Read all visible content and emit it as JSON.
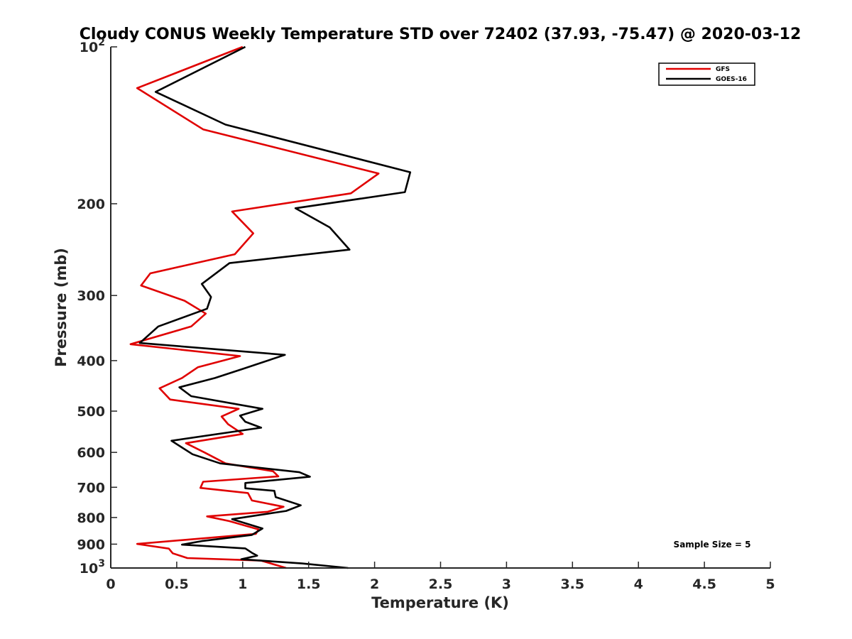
{
  "chart_data": {
    "type": "line",
    "title": "Cloudy CONUS Weekly Temperature STD over 72402 (37.93, -75.47) @ 2020-03-12",
    "xlabel": "Temperature (K)",
    "ylabel": "Pressure (mb)",
    "xlim": [
      0,
      5
    ],
    "ylim": [
      100,
      1000
    ],
    "y_scale": "log",
    "y_reversed": true,
    "x_ticks": [
      0,
      0.5,
      1,
      1.5,
      2,
      2.5,
      3,
      3.5,
      4,
      4.5,
      5
    ],
    "x_tick_labels": [
      "0",
      "0.5",
      "1",
      "1.5",
      "2",
      "2.5",
      "3",
      "3.5",
      "4",
      "4.5",
      "5"
    ],
    "y_ticks": [
      {
        "value": 100,
        "base": "10",
        "exp": "2",
        "label": ""
      },
      {
        "value": 200,
        "base": "",
        "exp": "",
        "label": "200"
      },
      {
        "value": 300,
        "base": "",
        "exp": "",
        "label": "300"
      },
      {
        "value": 400,
        "base": "",
        "exp": "",
        "label": "400"
      },
      {
        "value": 500,
        "base": "",
        "exp": "",
        "label": "500"
      },
      {
        "value": 600,
        "base": "",
        "exp": "",
        "label": "600"
      },
      {
        "value": 700,
        "base": "",
        "exp": "",
        "label": "700"
      },
      {
        "value": 800,
        "base": "",
        "exp": "",
        "label": "800"
      },
      {
        "value": 900,
        "base": "",
        "exp": "",
        "label": "900"
      },
      {
        "value": 1000,
        "base": "10",
        "exp": "3",
        "label": ""
      }
    ],
    "grid": false,
    "legend_position": "top-right",
    "annotation": "Sample Size = 5",
    "series": [
      {
        "name": "GFS",
        "color": "#e00000",
        "points": [
          [
            1.0,
            100
          ],
          [
            0.2,
            120
          ],
          [
            0.7,
            144
          ],
          [
            2.03,
            175
          ],
          [
            1.82,
            191
          ],
          [
            0.92,
            207
          ],
          [
            1.08,
            228
          ],
          [
            0.94,
            250
          ],
          [
            0.3,
            272
          ],
          [
            0.23,
            287
          ],
          [
            0.56,
            307
          ],
          [
            0.72,
            325
          ],
          [
            0.61,
            344
          ],
          [
            0.15,
            372
          ],
          [
            0.98,
            392
          ],
          [
            0.66,
            412
          ],
          [
            0.54,
            432
          ],
          [
            0.37,
            452
          ],
          [
            0.45,
            475
          ],
          [
            0.97,
            495
          ],
          [
            0.84,
            512
          ],
          [
            0.89,
            530
          ],
          [
            1.0,
            553
          ],
          [
            0.57,
            576
          ],
          [
            0.71,
            600
          ],
          [
            0.87,
            630
          ],
          [
            1.23,
            652
          ],
          [
            1.27,
            667
          ],
          [
            0.7,
            683
          ],
          [
            0.68,
            702
          ],
          [
            1.04,
            718
          ],
          [
            1.07,
            742
          ],
          [
            1.31,
            763
          ],
          [
            1.19,
            780
          ],
          [
            0.73,
            796
          ],
          [
            0.9,
            813
          ],
          [
            1.12,
            843
          ],
          [
            1.1,
            860
          ],
          [
            0.2,
            899
          ],
          [
            0.44,
            918
          ],
          [
            0.47,
            937
          ],
          [
            0.58,
            957
          ],
          [
            1.14,
            968
          ],
          [
            1.33,
            1000
          ]
        ]
      },
      {
        "name": "GOES-16",
        "color": "#000000",
        "points": [
          [
            1.02,
            100
          ],
          [
            0.34,
            122
          ],
          [
            0.87,
            141
          ],
          [
            2.27,
            174
          ],
          [
            2.23,
            190
          ],
          [
            1.4,
            204
          ],
          [
            1.66,
            222
          ],
          [
            1.81,
            245
          ],
          [
            0.9,
            260
          ],
          [
            0.69,
            285
          ],
          [
            0.76,
            302
          ],
          [
            0.73,
            318
          ],
          [
            0.36,
            344
          ],
          [
            0.22,
            370
          ],
          [
            1.32,
            390
          ],
          [
            1.0,
            415
          ],
          [
            0.79,
            432
          ],
          [
            0.52,
            450
          ],
          [
            0.61,
            468
          ],
          [
            1.15,
            495
          ],
          [
            0.98,
            510
          ],
          [
            1.02,
            524
          ],
          [
            1.14,
            538
          ],
          [
            0.46,
            570
          ],
          [
            0.62,
            605
          ],
          [
            0.83,
            630
          ],
          [
            1.43,
            655
          ],
          [
            1.51,
            668
          ],
          [
            1.02,
            687
          ],
          [
            1.02,
            703
          ],
          [
            1.24,
            711
          ],
          [
            1.25,
            731
          ],
          [
            1.44,
            758
          ],
          [
            1.33,
            777
          ],
          [
            0.92,
            806
          ],
          [
            1.15,
            840
          ],
          [
            1.07,
            864
          ],
          [
            0.69,
            888
          ],
          [
            0.54,
            902
          ],
          [
            1.02,
            917
          ],
          [
            1.07,
            935
          ],
          [
            1.11,
            947
          ],
          [
            0.99,
            962
          ],
          [
            1.45,
            980
          ],
          [
            1.8,
            1000
          ]
        ]
      }
    ]
  }
}
